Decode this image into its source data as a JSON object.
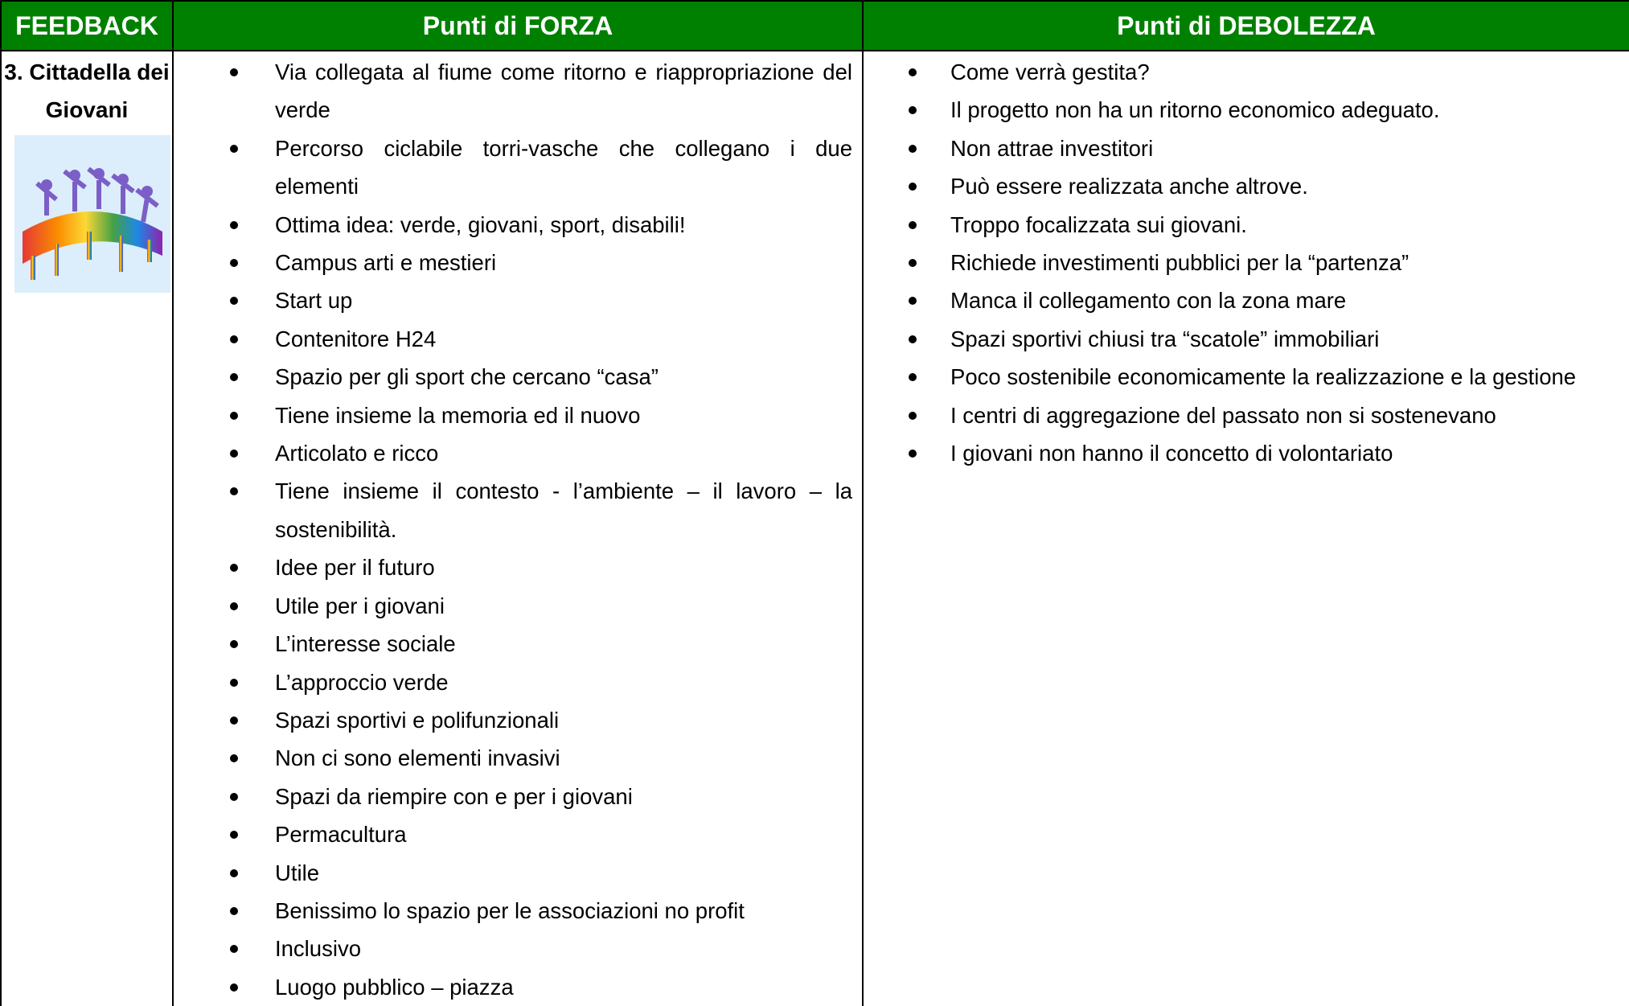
{
  "table": {
    "header": [
      "FEEDBACK",
      "Punti di FORZA",
      "Punti di DEBOLEZZA"
    ],
    "row_label": "3. Cittadella dei Giovani",
    "strengths": [
      "Via collegata al fiume come ritorno e riappropriazione del verde",
      "Percorso ciclabile torri-vasche che collegano i due elementi",
      "Ottima idea: verde, giovani, sport, disabili!",
      "Campus arti e mestieri",
      "Start up",
      "Contenitore H24",
      "Spazio per gli sport che cercano “casa”",
      "Tiene insieme la memoria ed il nuovo",
      "Articolato e ricco",
      "Tiene insieme il contesto - l’ambiente – il lavoro – la sostenibilità.",
      "Idee per il futuro",
      "Utile per i giovani",
      "L’interesse sociale",
      "L’approccio verde",
      "Spazi sportivi e polifunzionali",
      "Non ci sono elementi invasivi",
      "Spazi da riempire con e per i giovani",
      "Permacultura",
      "Utile",
      "Benissimo lo spazio per le associazioni no profit",
      "Inclusivo",
      "Luogo pubblico – piazza"
    ],
    "weaknesses": [
      "Come verrà gestita?",
      "Il progetto non ha un ritorno economico adeguato.",
      "Non attrae investitori",
      "Può essere realizzata anche altrove.",
      "Troppo focalizzata sui giovani.",
      "Richiede investimenti pubblici per la “partenza”",
      "Manca il collegamento con la zona mare",
      "Spazi sportivi chiusi tra “scatole” immobiliari",
      "Poco sostenibile economicamente la realizzazione e la gestione",
      "I centri di aggregazione del passato non si sostenevano",
      "I giovani non hanno il concetto di volontariato"
    ]
  }
}
